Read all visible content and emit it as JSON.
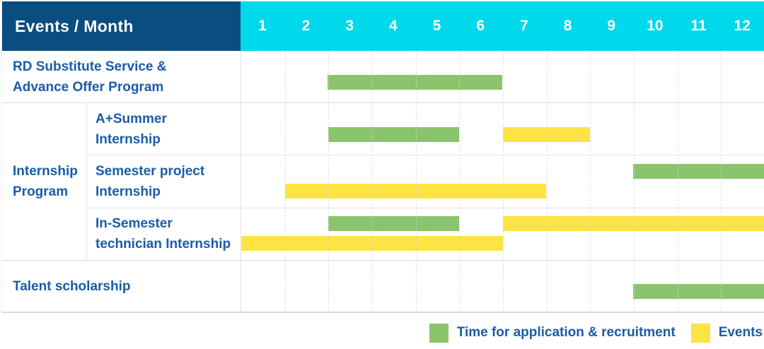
{
  "colors": {
    "header_bg": "#0a4d81",
    "months_bg": "#00d8ec",
    "green": "#8ac46c",
    "yellow": "#fee344",
    "label_text": "#1a5ca8",
    "header_text": "#ffffff",
    "grid_line": "#d8d8d8"
  },
  "header": {
    "title": "Events / Month",
    "months": [
      "1",
      "2",
      "3",
      "4",
      "5",
      "6",
      "7",
      "8",
      "9",
      "10",
      "11",
      "12"
    ]
  },
  "rows": {
    "rd": {
      "label": "RD Substitute Service &\nAdvance Offer Program"
    },
    "internship_group": {
      "label": "Internship\nProgram"
    },
    "summer": {
      "label": "A+Summer\nInternship"
    },
    "semester": {
      "label": "Semester project\nInternship"
    },
    "insemester": {
      "label": "In-Semester\ntechnician Internship"
    },
    "talent": {
      "label": "Talent scholarship"
    }
  },
  "chart_data": {
    "type": "gantt",
    "x_axis": {
      "label": "Month",
      "ticks": [
        "1",
        "2",
        "3",
        "4",
        "5",
        "6",
        "7",
        "8",
        "9",
        "10",
        "11",
        "12"
      ],
      "range": [
        1,
        12
      ]
    },
    "series_legend": {
      "green": "Time for application & recruitment",
      "yellow": "Events"
    },
    "bars": [
      {
        "row_id": "rd",
        "row": "RD Substitute Service & Advance Offer Program",
        "series": "Time for application & recruitment",
        "color": "green",
        "start_month": 3,
        "end_month": 6,
        "lane": "center"
      },
      {
        "row_id": "summer",
        "row": "A+Summer Internship",
        "series": "Time for application & recruitment",
        "color": "green",
        "start_month": 3,
        "end_month": 5,
        "lane": "center"
      },
      {
        "row_id": "summer",
        "row": "A+Summer Internship",
        "series": "Events",
        "color": "yellow",
        "start_month": 7,
        "end_month": 8,
        "lane": "center"
      },
      {
        "row_id": "semester",
        "row": "Semester project Internship",
        "series": "Time for application & recruitment",
        "color": "green",
        "start_month": 10,
        "end_month": 12,
        "lane": "upper"
      },
      {
        "row_id": "semester",
        "row": "Semester project Internship",
        "series": "Events",
        "color": "yellow",
        "start_month": 2,
        "end_month": 7,
        "lane": "lower"
      },
      {
        "row_id": "insemester",
        "row": "In-Semester technician Internship",
        "series": "Time for application & recruitment",
        "color": "green",
        "start_month": 3,
        "end_month": 5,
        "lane": "upper"
      },
      {
        "row_id": "insemester",
        "row": "In-Semester technician Internship",
        "series": "Events",
        "color": "yellow",
        "start_month": 7,
        "end_month": 12,
        "lane": "upper"
      },
      {
        "row_id": "insemester",
        "row": "In-Semester technician Internship",
        "series": "Events",
        "color": "yellow",
        "start_month": 1,
        "end_month": 6,
        "lane": "lower"
      },
      {
        "row_id": "talent",
        "row": "Talent scholarship",
        "series": "Time for application & recruitment",
        "color": "green",
        "start_month": 10,
        "end_month": 12,
        "lane": "center"
      }
    ]
  },
  "legend": {
    "items": [
      {
        "label": "Time for application & recruitment",
        "color": "green"
      },
      {
        "label": "Events",
        "color": "yellow"
      }
    ]
  }
}
